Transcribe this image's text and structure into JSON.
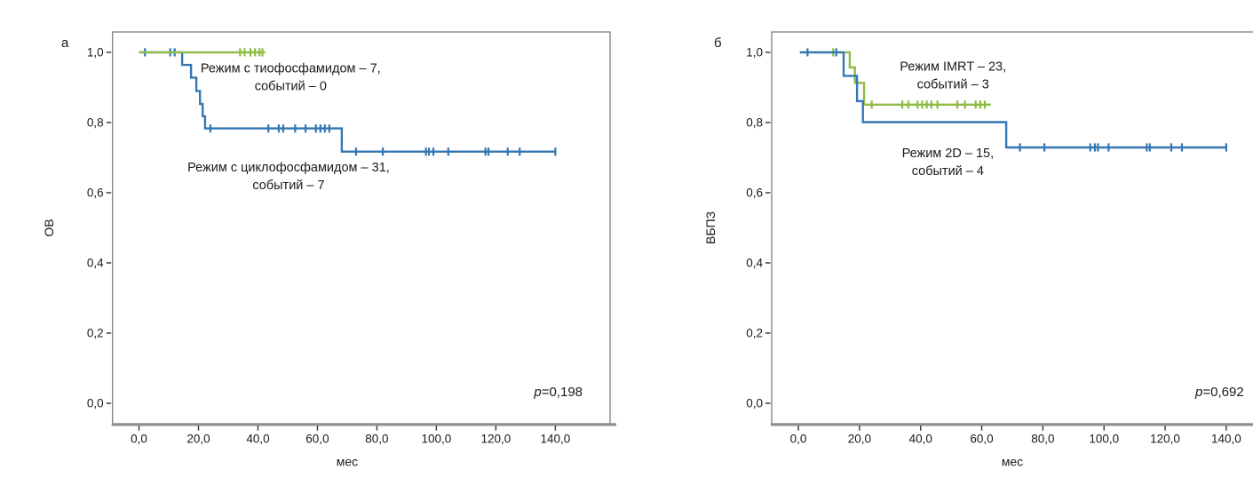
{
  "figure": {
    "background": "#ffffff",
    "colors": {
      "green": "#8fbc45",
      "blue": "#3477b4",
      "frame": "#7f7f7f",
      "axis_bar": "#8e8e8e",
      "tick": "#333333",
      "text": "#1a1a1a"
    }
  },
  "chart_data": [
    {
      "type": "line",
      "subtype": "kaplan-meier-step",
      "panel_label": "а",
      "xlabel": "мес",
      "ylabel": "ОВ",
      "p_prefix": "p",
      "p_rest": "=0,198",
      "xlim": [
        -8.9,
        158.4
      ],
      "ylim": [
        -0.06,
        1.058
      ],
      "grid": false,
      "x_ticks": [
        {
          "v": 0,
          "label": "0,0"
        },
        {
          "v": 20,
          "label": "20,0"
        },
        {
          "v": 40,
          "label": "40,0"
        },
        {
          "v": 60,
          "label": "60,0"
        },
        {
          "v": 80,
          "label": "80,0"
        },
        {
          "v": 100,
          "label": "100,0"
        },
        {
          "v": 120,
          "label": "120,0"
        },
        {
          "v": 140,
          "label": "140,0"
        }
      ],
      "y_ticks": [
        {
          "v": 1.0,
          "label": "1,0"
        },
        {
          "v": 0.8,
          "label": "0,8"
        },
        {
          "v": 0.6,
          "label": "0,6"
        },
        {
          "v": 0.4,
          "label": "0,4"
        },
        {
          "v": 0.2,
          "label": "0,2"
        },
        {
          "v": 0.0,
          "label": "0,0"
        }
      ],
      "series": [
        {
          "name": "Режим с циклофосфамидом – 31, событий – 7",
          "color_key": "blue",
          "points": [
            [
              0,
              1
            ],
            [
              14.5,
              1
            ],
            [
              14.5,
              0.964
            ],
            [
              17.5,
              0.964
            ],
            [
              17.5,
              0.928
            ],
            [
              19.3,
              0.928
            ],
            [
              19.3,
              0.89
            ],
            [
              20.5,
              0.89
            ],
            [
              20.5,
              0.853
            ],
            [
              21.4,
              0.853
            ],
            [
              21.4,
              0.818
            ],
            [
              22.2,
              0.818
            ],
            [
              22.2,
              0.783
            ],
            [
              68.2,
              0.783
            ],
            [
              68.2,
              0.717
            ],
            [
              140,
              0.717
            ]
          ],
          "censors": [
            [
              2,
              1
            ],
            [
              10.5,
              1
            ],
            [
              12,
              1
            ],
            [
              24,
              0.783
            ],
            [
              43.5,
              0.783
            ],
            [
              47,
              0.783
            ],
            [
              48.5,
              0.783
            ],
            [
              52.5,
              0.783
            ],
            [
              56,
              0.783
            ],
            [
              59.5,
              0.783
            ],
            [
              61,
              0.783
            ],
            [
              62.5,
              0.783
            ],
            [
              64,
              0.783
            ],
            [
              73,
              0.717
            ],
            [
              82,
              0.717
            ],
            [
              96.5,
              0.717
            ],
            [
              97.5,
              0.717
            ],
            [
              99,
              0.717
            ],
            [
              104,
              0.717
            ],
            [
              116.5,
              0.717
            ],
            [
              117.5,
              0.717
            ],
            [
              124,
              0.717
            ],
            [
              128,
              0.717
            ],
            [
              140,
              0.717
            ]
          ]
        },
        {
          "name": "Режим с тиофосфамидом – 7, событий – 0",
          "color_key": "green",
          "points": [
            [
              0,
              1
            ],
            [
              42.5,
              1
            ]
          ],
          "censors": [
            [
              34,
              1
            ],
            [
              35.5,
              1
            ],
            [
              37.5,
              1
            ],
            [
              39,
              1
            ],
            [
              40.5,
              1
            ],
            [
              41.5,
              1
            ]
          ]
        }
      ],
      "annotations": [
        {
          "lines": [
            "Режим с тиофосфамидом – 7,",
            "событий – 0"
          ],
          "t": 51,
          "v": 0.93
        },
        {
          "lines": [
            "Режим с циклофосфамидом – 31,",
            "событий – 7"
          ],
          "t": 50.3,
          "v": 0.648
        }
      ]
    },
    {
      "type": "line",
      "subtype": "kaplan-meier-step",
      "panel_label": "б",
      "xlabel": "мес",
      "ylabel": "ВБПЗ",
      "p_prefix": "p",
      "p_rest": "=0,692",
      "xlim": [
        -8.73,
        154.76
      ],
      "ylim": [
        -0.06,
        1.058
      ],
      "grid": false,
      "x_ticks": [
        {
          "v": 0,
          "label": "0,0"
        },
        {
          "v": 20,
          "label": "20,0"
        },
        {
          "v": 40,
          "label": "40,0"
        },
        {
          "v": 60,
          "label": "60,0"
        },
        {
          "v": 80,
          "label": "80,0"
        },
        {
          "v": 100,
          "label": "100,0"
        },
        {
          "v": 120,
          "label": "120,0"
        },
        {
          "v": 140,
          "label": "140,0"
        }
      ],
      "y_ticks": [
        {
          "v": 1.0,
          "label": "1,0"
        },
        {
          "v": 0.8,
          "label": "0,8"
        },
        {
          "v": 0.6,
          "label": "0,6"
        },
        {
          "v": 0.4,
          "label": "0,4"
        },
        {
          "v": 0.2,
          "label": "0,2"
        },
        {
          "v": 0.0,
          "label": "0,0"
        }
      ],
      "series": [
        {
          "name": "Режим IMRT – 23, событий – 3",
          "color_key": "green",
          "points": [
            [
              0.5,
              1
            ],
            [
              16.8,
              1
            ],
            [
              16.8,
              0.957
            ],
            [
              18.5,
              0.957
            ],
            [
              18.5,
              0.913
            ],
            [
              21.5,
              0.913
            ],
            [
              21.5,
              0.851
            ],
            [
              63,
              0.851
            ]
          ],
          "censors": [
            [
              11.4,
              1
            ],
            [
              24,
              0.851
            ],
            [
              34,
              0.851
            ],
            [
              36,
              0.851
            ],
            [
              39,
              0.851
            ],
            [
              40.5,
              0.851
            ],
            [
              42,
              0.851
            ],
            [
              43.5,
              0.851
            ],
            [
              45.5,
              0.851
            ],
            [
              52,
              0.851
            ],
            [
              54.5,
              0.851
            ],
            [
              58,
              0.851
            ],
            [
              59.5,
              0.851
            ],
            [
              61,
              0.851
            ]
          ]
        },
        {
          "name": "Режим 2D – 15, событий – 4",
          "color_key": "blue",
          "points": [
            [
              0.5,
              1
            ],
            [
              14.8,
              1
            ],
            [
              14.8,
              0.933
            ],
            [
              19.2,
              0.933
            ],
            [
              19.2,
              0.861
            ],
            [
              21.1,
              0.861
            ],
            [
              21.1,
              0.801
            ],
            [
              68,
              0.801
            ],
            [
              68,
              0.729
            ],
            [
              140,
              0.729
            ]
          ],
          "censors": [
            [
              3,
              1
            ],
            [
              12.4,
              1
            ],
            [
              72.5,
              0.729
            ],
            [
              80.5,
              0.729
            ],
            [
              95.5,
              0.729
            ],
            [
              97,
              0.729
            ],
            [
              98,
              0.729
            ],
            [
              101.5,
              0.729
            ],
            [
              114,
              0.729
            ],
            [
              115,
              0.729
            ],
            [
              122,
              0.729
            ],
            [
              125.5,
              0.729
            ],
            [
              140,
              0.729
            ]
          ]
        }
      ],
      "annotations": [
        {
          "lines": [
            "Режим IMRT – 23,",
            "событий – 3"
          ],
          "t": 50.6,
          "v": 0.935
        },
        {
          "lines": [
            "Режим 2D – 15,",
            "событий – 4"
          ],
          "t": 48.9,
          "v": 0.689
        }
      ]
    }
  ]
}
